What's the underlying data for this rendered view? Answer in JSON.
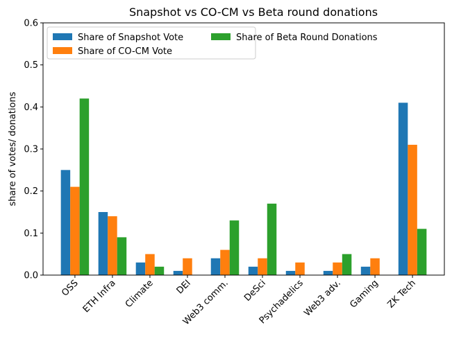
{
  "chart_data": {
    "type": "bar",
    "title": "Snapshot vs CO-CM vs Beta round donations",
    "xlabel": "",
    "ylabel": "share of votes/ donations",
    "ylim": [
      0,
      0.6
    ],
    "yticks": [
      "0.0",
      "0.1",
      "0.2",
      "0.3",
      "0.4",
      "0.5",
      "0.6"
    ],
    "grid": false,
    "legend_placement": "top-left",
    "categories": [
      "OSS",
      "ETH Infra",
      "Climate",
      "DEI",
      "Web3 comm.",
      "DeSci",
      "Psychadelics",
      "Web3 adv.",
      "Gaming",
      "ZK Tech"
    ],
    "series": [
      {
        "name": "Share of Snapshot Vote",
        "color": "#1f77b4",
        "values": [
          0.25,
          0.15,
          0.03,
          0.01,
          0.04,
          0.02,
          0.01,
          0.01,
          0.02,
          0.41
        ]
      },
      {
        "name": "Share of CO-CM Vote",
        "color": "#ff7f0e",
        "values": [
          0.21,
          0.14,
          0.05,
          0.04,
          0.06,
          0.04,
          0.03,
          0.03,
          0.04,
          0.31
        ]
      },
      {
        "name": "Share of Beta Round Donations",
        "color": "#2ca02c",
        "values": [
          0.42,
          0.09,
          0.02,
          0.0,
          0.13,
          0.17,
          0.0,
          0.05,
          0.0,
          0.11
        ]
      }
    ]
  }
}
